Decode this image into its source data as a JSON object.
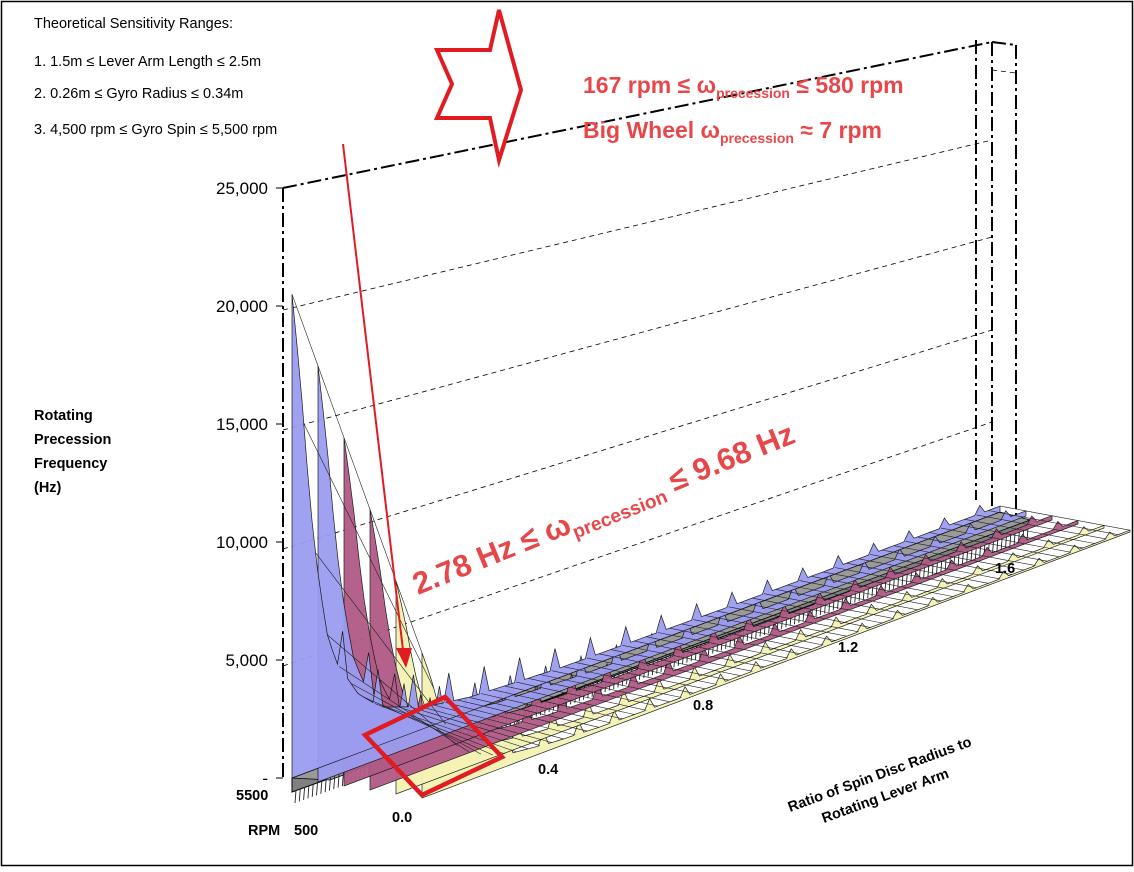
{
  "notes": {
    "heading": "Theoretical Sensitivity Ranges:",
    "items": [
      "1. 1.5m ≤ Lever Arm Length ≤ 2.5m",
      "2. 0.26m ≤ Gyro Radius ≤ 0.34m",
      "3. 4,500 rpm ≤ Gyro Spin ≤ 5,500 rpm"
    ]
  },
  "annotations": {
    "precession_rpm_range": {
      "pre": "167 rpm ≤ ω",
      "sub": "precession",
      "post": " ≤ 580 rpm"
    },
    "big_wheel": {
      "pre": "Big Wheel ω",
      "sub": "precession",
      "post": " ≈ 7 rpm"
    },
    "precession_hz_range": {
      "pre": "2.78 Hz ≤ ω",
      "sub": "precession",
      "post": " ≤ 9.68 Hz"
    }
  },
  "colors": {
    "annotation_red": "#e8474a",
    "arrow_red": "#e11b22",
    "surface_blue": "#9b9cf0",
    "surface_pink": "#b05a86",
    "surface_yellow": "#f4f3b4"
  },
  "chart_data": {
    "type": "surface",
    "title": "",
    "zlabel_lines": [
      "Rotating",
      "Precession",
      "Frequency",
      "(Hz)"
    ],
    "xlabel_lines": [
      "Ratio of Spin Disc Radius to",
      "Rotating Lever Arm"
    ],
    "ylabel": "RPM",
    "z_ticks": [
      "-",
      "5,000",
      "10,000",
      "15,000",
      "20,000",
      "25,000"
    ],
    "z_tick_values": [
      0,
      5000,
      10000,
      15000,
      20000,
      25000
    ],
    "zlim": [
      0,
      25000
    ],
    "x_ticks": [
      "0.0",
      "0.4",
      "0.8",
      "1.2",
      "1.6"
    ],
    "x_tick_values": [
      0.0,
      0.4,
      0.8,
      1.2,
      1.6
    ],
    "y_ticks": [
      "5500",
      "500"
    ],
    "y_tick_values": [
      5500,
      500
    ],
    "grid": true,
    "front_profile": {
      "x": [
        0.0,
        0.02,
        0.04,
        0.06,
        0.08,
        0.1,
        0.15,
        0.2,
        0.3,
        0.4,
        0.6,
        0.8,
        1.0,
        1.2,
        1.4,
        1.6
      ],
      "z": [
        20500,
        16500,
        11500,
        8000,
        5500,
        4200,
        2500,
        1600,
        900,
        600,
        400,
        350,
        300,
        280,
        260,
        250
      ]
    }
  }
}
